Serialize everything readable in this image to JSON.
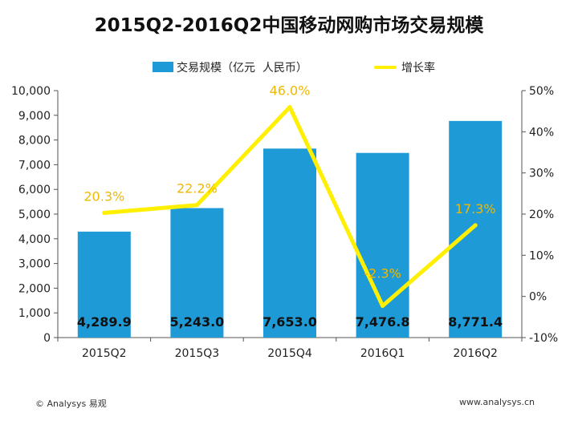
{
  "chart_data": {
    "type": "bar+line",
    "title": "2015Q2-2016Q2中国移动网购市场交易规模",
    "categories": [
      "2015Q2",
      "2015Q3",
      "2015Q4",
      "2016Q1",
      "2016Q2"
    ],
    "series": [
      {
        "name": "交易规模（亿元  人民币）",
        "type": "bar",
        "axis": "left",
        "values": [
          4289.9,
          5243.0,
          7653.0,
          7476.8,
          8771.4
        ],
        "labels": [
          "4,289.9",
          "5,243.0",
          "7,653.0",
          "7,476.8",
          "8,771.4"
        ]
      },
      {
        "name": "增长率",
        "type": "line",
        "axis": "right",
        "values": [
          20.3,
          22.2,
          46.0,
          -2.3,
          17.3
        ],
        "labels": [
          "20.3%",
          "22.2%",
          "46.0%",
          "-2.3%",
          "17.3%"
        ]
      }
    ],
    "left_axis": {
      "range": [
        0,
        10000
      ],
      "ticks": [
        0,
        1000,
        2000,
        3000,
        4000,
        5000,
        6000,
        7000,
        8000,
        9000,
        10000
      ],
      "tick_labels": [
        "0",
        "1,000",
        "2,000",
        "3,000",
        "4,000",
        "5,000",
        "6,000",
        "7,000",
        "8,000",
        "9,000",
        "10,000"
      ]
    },
    "right_axis": {
      "range": [
        -10,
        50
      ],
      "ticks": [
        -10,
        0,
        10,
        20,
        30,
        40,
        50
      ],
      "tick_labels": [
        "-10%",
        "0%",
        "10%",
        "20%",
        "30%",
        "40%",
        "50%"
      ]
    },
    "grid": false,
    "legend_position": "top",
    "colors": {
      "bar": "#1e9ad6",
      "line": "#ffef00",
      "line_label": "#f0b800",
      "bar_label": "#111111"
    }
  },
  "footer": {
    "left": "© Analysys 易观",
    "right": "www.analysys.cn"
  }
}
